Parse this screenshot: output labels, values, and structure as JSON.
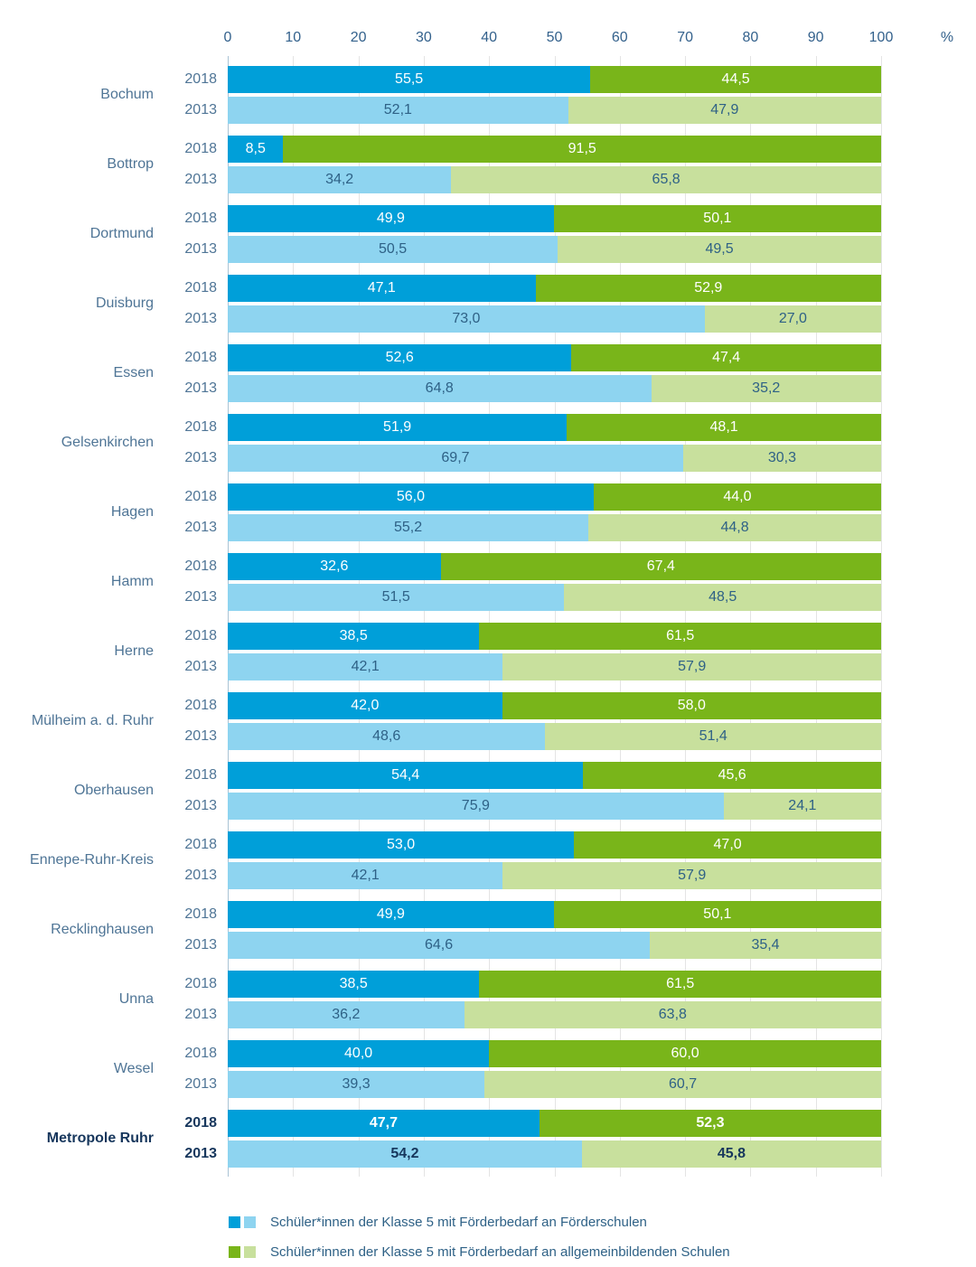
{
  "colors": {
    "bar_2018_foerder": "#009fd9",
    "bar_2013_foerder": "#8ed4f0",
    "bar_2018_allgemein": "#79b51a",
    "bar_2013_allgemein": "#c8e09d",
    "axis_text": "#33618c",
    "label_text": "#4f7596",
    "value_text_light_rows": "#2e6186",
    "metropole_text": "#16365c",
    "gridline": "#e4e4e4",
    "axis_line": "#aac3d5"
  },
  "chart_data": {
    "type": "bar",
    "orientation": "horizontal-stacked",
    "title": "",
    "unit": "%",
    "x_axis": {
      "ticks": [
        0,
        10,
        20,
        30,
        40,
        50,
        60,
        70,
        80,
        90,
        100
      ],
      "suffix": "%",
      "xlim": [
        0,
        100
      ],
      "grid": true,
      "position": "top"
    },
    "series_years": [
      "2018",
      "2013"
    ],
    "stack_segments": [
      "Förderschulen",
      "allgemeinbildende Schulen"
    ],
    "groups": [
      {
        "name": "Bochum",
        "bold": false,
        "rows": [
          {
            "year": "2018",
            "values": [
              55.5,
              44.5
            ]
          },
          {
            "year": "2013",
            "values": [
              52.1,
              47.9
            ]
          }
        ]
      },
      {
        "name": "Bottrop",
        "bold": false,
        "rows": [
          {
            "year": "2018",
            "values": [
              8.5,
              91.5
            ]
          },
          {
            "year": "2013",
            "values": [
              34.2,
              65.8
            ]
          }
        ]
      },
      {
        "name": "Dortmund",
        "bold": false,
        "rows": [
          {
            "year": "2018",
            "values": [
              49.9,
              50.1
            ]
          },
          {
            "year": "2013",
            "values": [
              50.5,
              49.5
            ]
          }
        ]
      },
      {
        "name": "Duisburg",
        "bold": false,
        "rows": [
          {
            "year": "2018",
            "values": [
              47.1,
              52.9
            ]
          },
          {
            "year": "2013",
            "values": [
              73.0,
              27.0
            ]
          }
        ]
      },
      {
        "name": "Essen",
        "bold": false,
        "rows": [
          {
            "year": "2018",
            "values": [
              52.6,
              47.4
            ]
          },
          {
            "year": "2013",
            "values": [
              64.8,
              35.2
            ]
          }
        ]
      },
      {
        "name": "Gelsenkirchen",
        "bold": false,
        "rows": [
          {
            "year": "2018",
            "values": [
              51.9,
              48.1
            ]
          },
          {
            "year": "2013",
            "values": [
              69.7,
              30.3
            ]
          }
        ]
      },
      {
        "name": "Hagen",
        "bold": false,
        "rows": [
          {
            "year": "2018",
            "values": [
              56.0,
              44.0
            ]
          },
          {
            "year": "2013",
            "values": [
              55.2,
              44.8
            ]
          }
        ]
      },
      {
        "name": "Hamm",
        "bold": false,
        "rows": [
          {
            "year": "2018",
            "values": [
              32.6,
              67.4
            ]
          },
          {
            "year": "2013",
            "values": [
              51.5,
              48.5
            ]
          }
        ]
      },
      {
        "name": "Herne",
        "bold": false,
        "rows": [
          {
            "year": "2018",
            "values": [
              38.5,
              61.5
            ]
          },
          {
            "year": "2013",
            "values": [
              42.1,
              57.9
            ]
          }
        ]
      },
      {
        "name": "Mülheim a. d. Ruhr",
        "bold": false,
        "rows": [
          {
            "year": "2018",
            "values": [
              42.0,
              58.0
            ]
          },
          {
            "year": "2013",
            "values": [
              48.6,
              51.4
            ]
          }
        ]
      },
      {
        "name": "Oberhausen",
        "bold": false,
        "rows": [
          {
            "year": "2018",
            "values": [
              54.4,
              45.6
            ]
          },
          {
            "year": "2013",
            "values": [
              75.9,
              24.1
            ]
          }
        ]
      },
      {
        "name": "Ennepe-Ruhr-Kreis",
        "bold": false,
        "rows": [
          {
            "year": "2018",
            "values": [
              53.0,
              47.0
            ]
          },
          {
            "year": "2013",
            "values": [
              42.1,
              57.9
            ]
          }
        ]
      },
      {
        "name": "Recklinghausen",
        "bold": false,
        "rows": [
          {
            "year": "2018",
            "values": [
              49.9,
              50.1
            ]
          },
          {
            "year": "2013",
            "values": [
              64.6,
              35.4
            ]
          }
        ]
      },
      {
        "name": "Unna",
        "bold": false,
        "rows": [
          {
            "year": "2018",
            "values": [
              38.5,
              61.5
            ]
          },
          {
            "year": "2013",
            "values": [
              36.2,
              63.8
            ]
          }
        ]
      },
      {
        "name": "Wesel",
        "bold": false,
        "rows": [
          {
            "year": "2018",
            "values": [
              40.0,
              60.0
            ]
          },
          {
            "year": "2013",
            "values": [
              39.3,
              60.7
            ]
          }
        ]
      },
      {
        "name": "Metropole Ruhr",
        "bold": true,
        "rows": [
          {
            "year": "2018",
            "values": [
              47.7,
              52.3
            ]
          },
          {
            "year": "2013",
            "values": [
              54.2,
              45.8
            ]
          }
        ]
      }
    ],
    "legend": [
      {
        "label": "Schüler*innen der Klasse 5 mit Förderbedarf an Förderschulen",
        "swatches": [
          "bar_2018_foerder",
          "bar_2013_foerder"
        ]
      },
      {
        "label": "Schüler*innen der Klasse 5 mit Förderbedarf an allgemeinbildenden Schulen",
        "swatches": [
          "bar_2018_allgemein",
          "bar_2013_allgemein"
        ]
      }
    ],
    "legend_position": "bottom-left",
    "value_label_decimal_separator": ","
  }
}
